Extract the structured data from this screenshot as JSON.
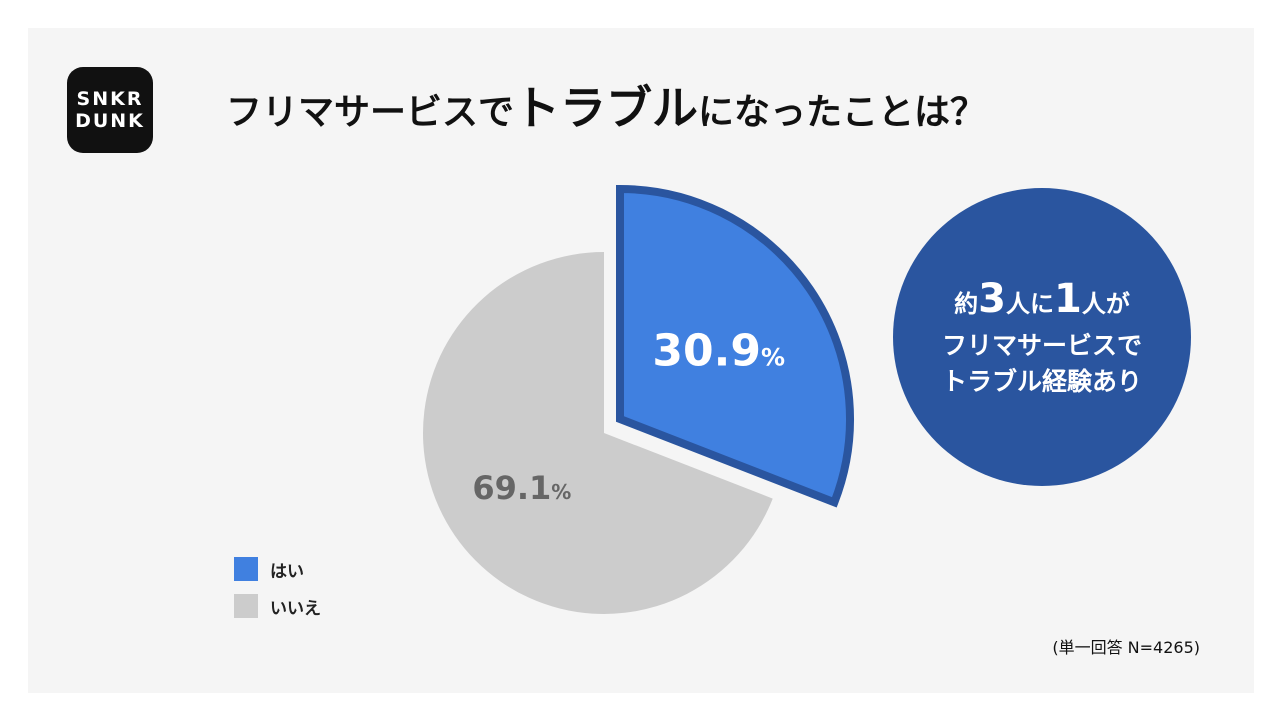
{
  "brand": {
    "logo_line1": "SNKR",
    "logo_line2": "DUNK"
  },
  "title": {
    "prefix": "フリマサービスで",
    "emphasis": "トラブル",
    "suffix": "になったことは？"
  },
  "callout": {
    "pre1": "約",
    "num1": "3",
    "mid": "人に",
    "num2": "1",
    "post": "人が",
    "line2": "フリマサービスで",
    "line3": "トラブル経験あり"
  },
  "legend": [
    {
      "label": "はい",
      "color": "#4080e0"
    },
    {
      "label": "いいえ",
      "color": "#cccccc"
    }
  ],
  "note": "(単一回答 N=4265)",
  "chart_data": {
    "type": "pie",
    "slices": [
      {
        "label": "はい",
        "value": 30.9,
        "value_text": "30.9",
        "unit": "%",
        "color": "#4080e0",
        "edge": "#2a559f",
        "exploded": true,
        "text_color": "#ffffff"
      },
      {
        "label": "いいえ",
        "value": 69.1,
        "value_text": "69.1",
        "unit": "%",
        "color": "#cccccc",
        "exploded": false,
        "text_color": "#666666"
      }
    ],
    "start_angle": "12 o'clock",
    "direction": "clockwise"
  }
}
